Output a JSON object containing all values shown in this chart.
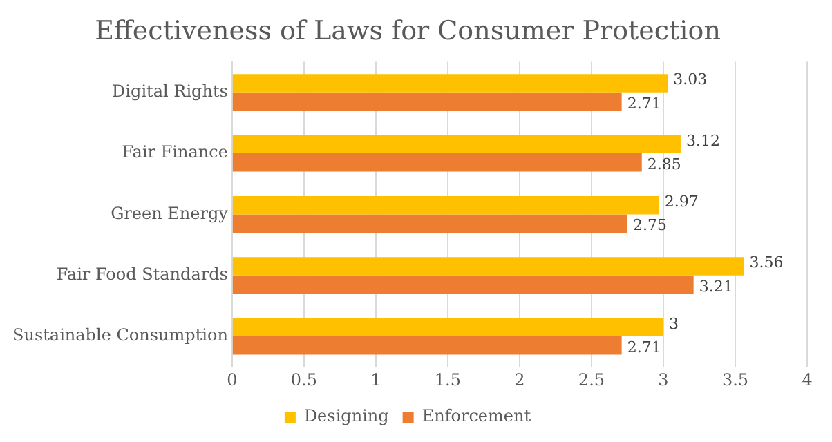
{
  "chart_data": {
    "type": "bar",
    "orientation": "horizontal",
    "title": "Effectiveness of Laws for Consumer Protection",
    "categories": [
      "Digital Rights",
      "Fair Finance",
      "Green Energy",
      "Fair Food Standards",
      "Sustainable Consumption"
    ],
    "series": [
      {
        "name": "Designing",
        "color": "#ffc000",
        "values": [
          3.03,
          3.12,
          2.97,
          3.56,
          3
        ]
      },
      {
        "name": "Enforcement",
        "color": "#ed7d31",
        "values": [
          2.71,
          2.85,
          2.75,
          3.21,
          2.71
        ]
      }
    ],
    "xlim": [
      0,
      4
    ],
    "xticks": [
      0,
      0.5,
      1,
      1.5,
      2,
      2.5,
      3,
      3.5,
      4
    ],
    "grid": "x",
    "legend": "bottom",
    "data_labels": true
  }
}
